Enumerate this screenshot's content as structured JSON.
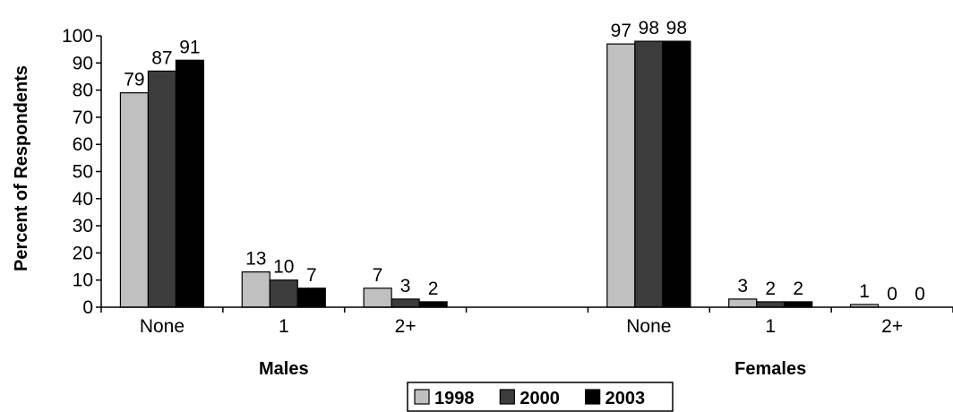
{
  "chart_data": {
    "type": "bar",
    "ylabel": "Percent of Respondents",
    "ylim": [
      0,
      100
    ],
    "yticks": [
      "0",
      "10",
      "20",
      "30",
      "40",
      "50",
      "60",
      "70",
      "80",
      "90",
      "100"
    ],
    "grid": false,
    "legend_position": "bottom-center",
    "groups": [
      {
        "label": "Males",
        "categories": [
          "None",
          "1",
          "2+"
        ]
      },
      {
        "label": "Females",
        "categories": [
          "None",
          "1",
          "2+"
        ]
      }
    ],
    "series": [
      {
        "name": "1998",
        "color": "#c0c0c0",
        "values": [
          79,
          13,
          7,
          97,
          3,
          1
        ],
        "labels": [
          "79",
          "13",
          "7",
          "97",
          "3",
          "1"
        ]
      },
      {
        "name": "2000",
        "color": "#3c3c3c",
        "values": [
          87,
          10,
          3,
          98,
          2,
          0
        ],
        "labels": [
          "87",
          "10",
          "3",
          "98",
          "2",
          "0"
        ]
      },
      {
        "name": "2003",
        "color": "#000000",
        "values": [
          91,
          7,
          2,
          98,
          2,
          0
        ],
        "labels": [
          "91",
          "7",
          "2",
          "98",
          "2",
          "0"
        ]
      }
    ]
  }
}
